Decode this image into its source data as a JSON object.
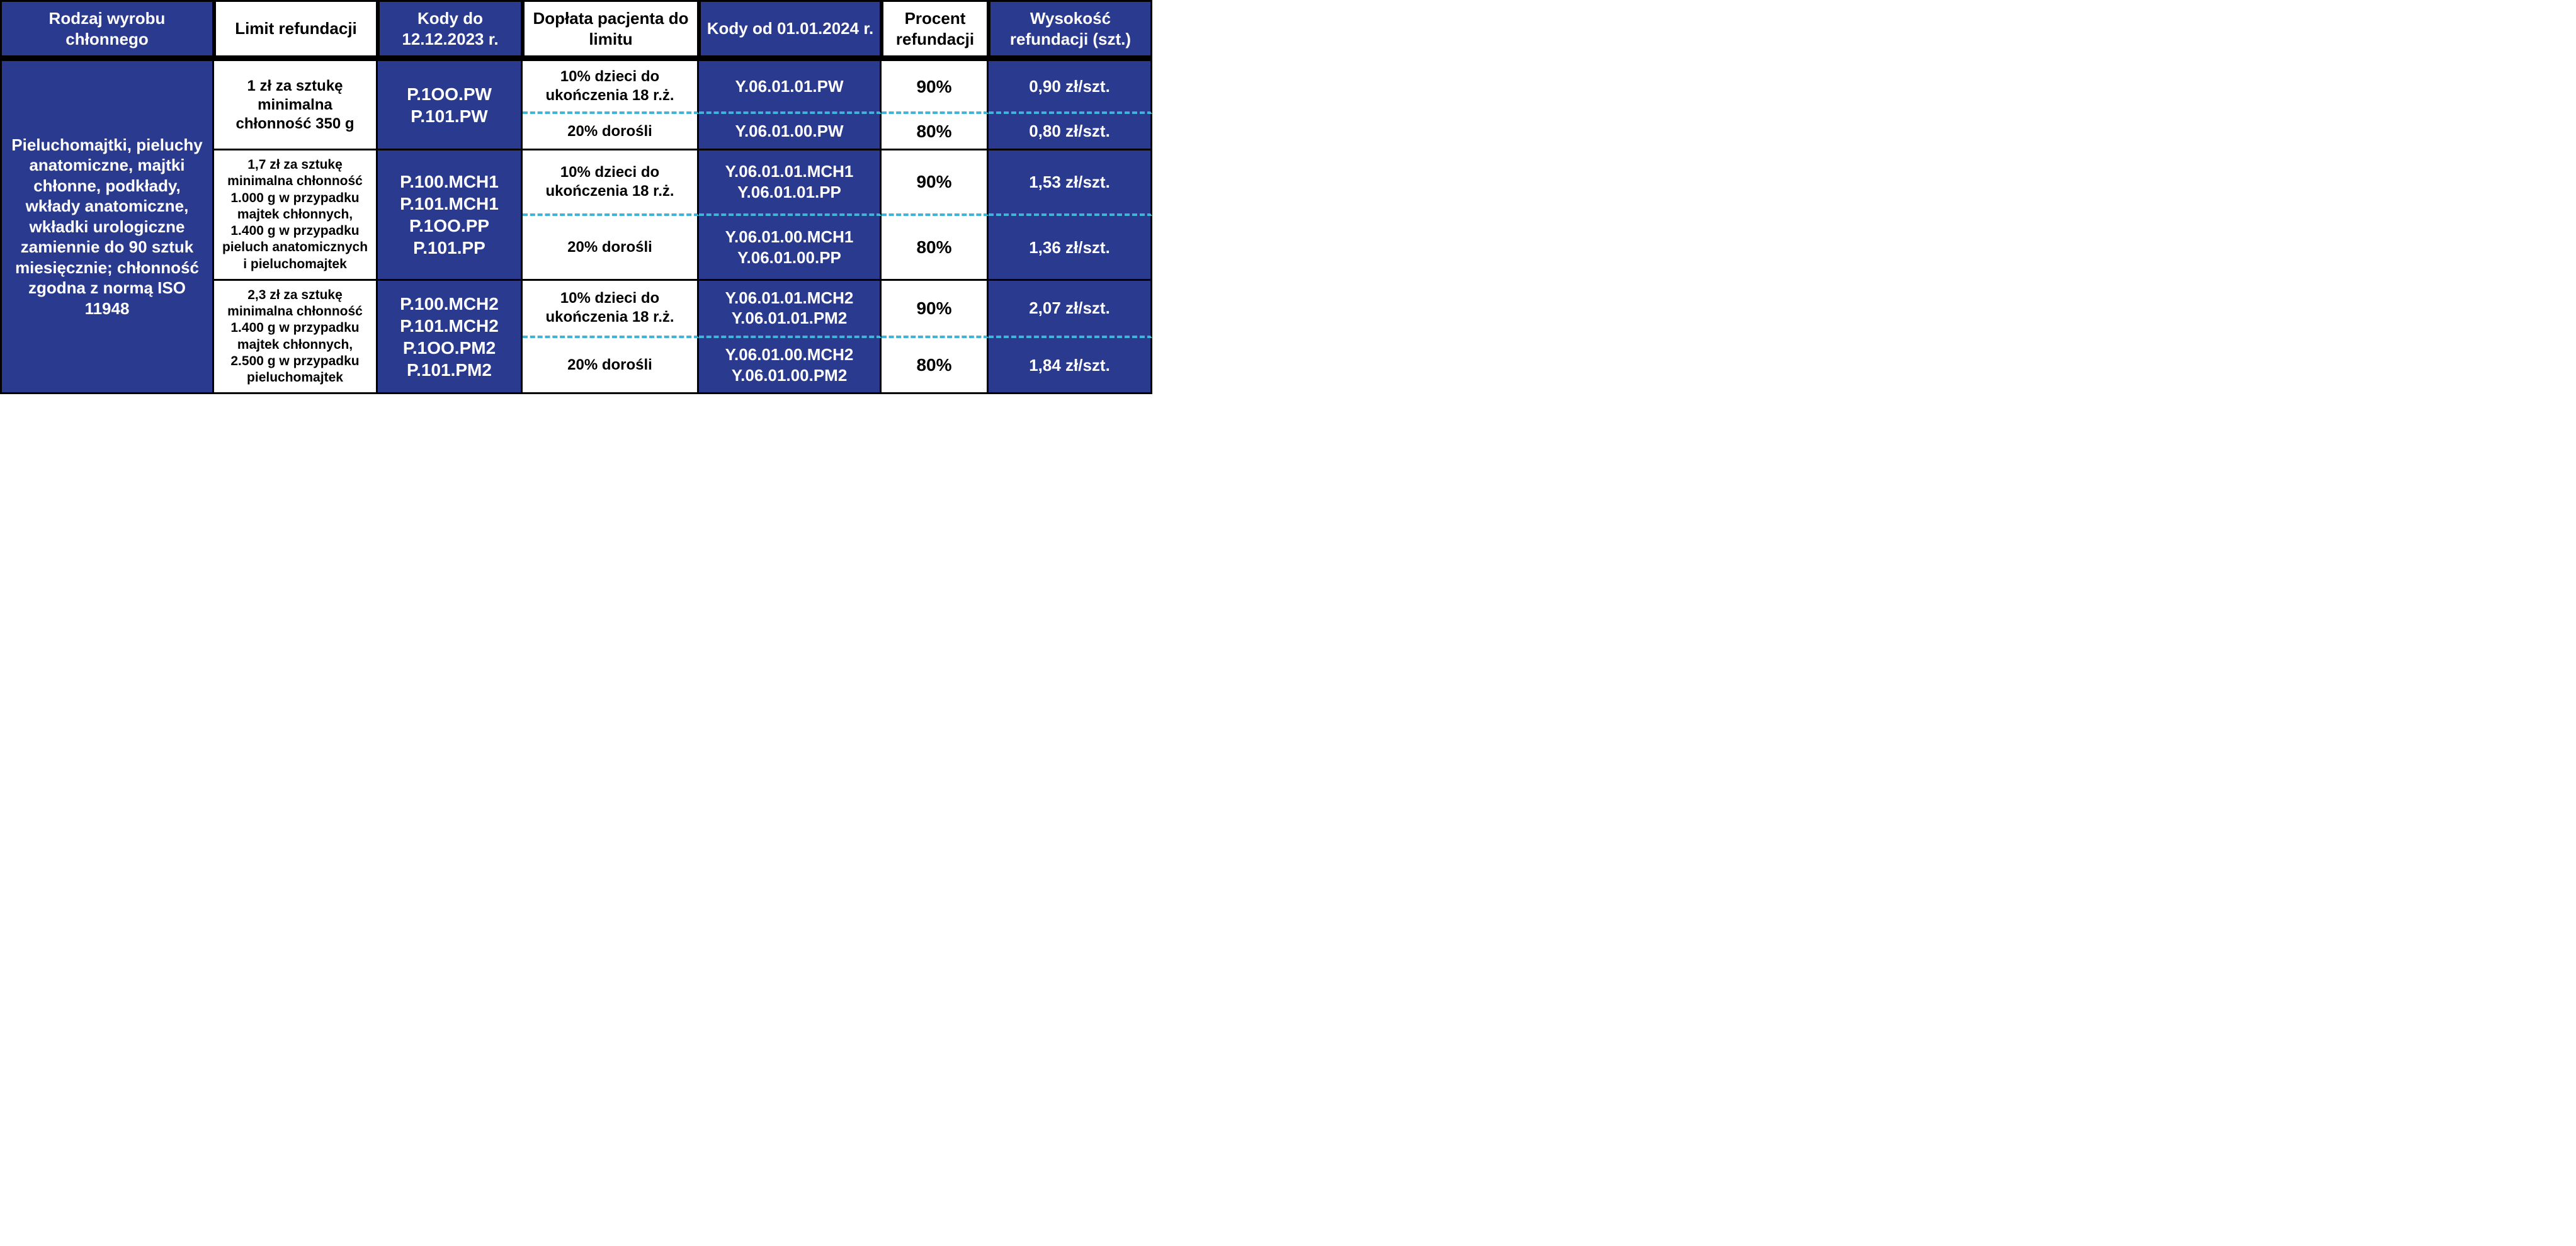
{
  "colors": {
    "blue_bg": "#2a3b8f",
    "white_bg": "#ffffff",
    "text_white": "#ffffff",
    "text_black": "#000000",
    "border": "#000000",
    "dash": "#3fb4d8"
  },
  "headers": {
    "c1": "Rodzaj wyrobu chłonnego",
    "c2": "Limit refundacji",
    "c3": "Kody do 12.12.2023 r.",
    "c4": "Dopłata pacjenta do limitu",
    "c5": "Kody od 01.01.2024 r.",
    "c6": "Procent refundacji",
    "c7": "Wysokość refundacji (szt.)"
  },
  "col1_text": "Pieluchomajtki, pieluchy anatomiczne, majtki chłonne, podkłady, wkłady anatomiczne, wkładki urologiczne zamiennie do 90 sztuk miesięcznie; chłonność zgodna z normą ISO 11948",
  "groups": [
    {
      "limit": "1 zł za sztukę minimalna chłonność 350 g",
      "codes_old": "P.1OO.PW\nP.101.PW",
      "sub": [
        {
          "doplata": "10% dzieci do ukończenia 18 r.ż.",
          "codes_new": "Y.06.01.01.PW",
          "procent": "90%",
          "wys": "0,90 zł/szt."
        },
        {
          "doplata": "20% dorośli",
          "codes_new": "Y.06.01.00.PW",
          "procent": "80%",
          "wys": "0,80 zł/szt."
        }
      ]
    },
    {
      "limit": "1,7 zł za sztukę minimalna chłonność 1.000 g w przypadku majtek chłonnych, 1.400 g w przypadku pieluch anatomicznych i pieluchomajtek",
      "codes_old": "P.100.MCH1\nP.101.MCH1\nP.1OO.PP\nP.101.PP",
      "sub": [
        {
          "doplata": "10% dzieci do ukończenia 18 r.ż.",
          "codes_new": "Y.06.01.01.MCH1\nY.06.01.01.PP",
          "procent": "90%",
          "wys": "1,53 zł/szt."
        },
        {
          "doplata": "20% dorośli",
          "codes_new": "Y.06.01.00.MCH1\nY.06.01.00.PP",
          "procent": "80%",
          "wys": "1,36 zł/szt."
        }
      ]
    },
    {
      "limit": "2,3 zł za sztukę minimalna chłonność 1.400 g w przypadku majtek chłonnych, 2.500 g w przypadku pieluchomajtek",
      "codes_old": "P.100.MCH2\nP.101.MCH2\nP.1OO.PM2\nP.101.PM2",
      "sub": [
        {
          "doplata": "10% dzieci do ukończenia 18 r.ż.",
          "codes_new": "Y.06.01.01.MCH2\nY.06.01.01.PM2",
          "procent": "90%",
          "wys": "2,07 zł/szt."
        },
        {
          "doplata": "20% dorośli",
          "codes_new": "Y.06.01.00.MCH2\nY.06.01.00.PM2",
          "procent": "80%",
          "wys": "1,84 zł/szt."
        }
      ]
    }
  ]
}
